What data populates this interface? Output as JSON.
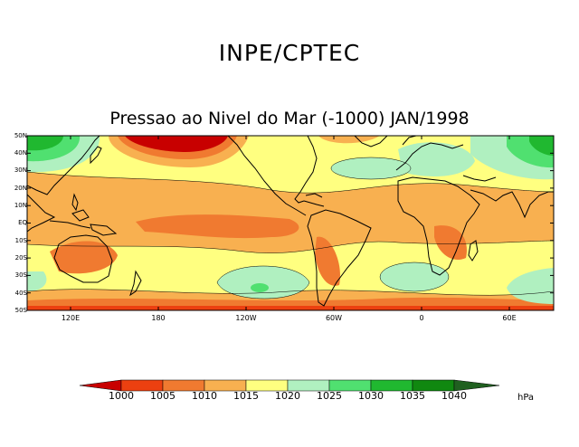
{
  "header": {
    "title": "INPE/CPTEC"
  },
  "map": {
    "title": "Pressao ao Nivel do Mar (-1000) JAN/1998",
    "lat_labels": [
      "50N",
      "40N",
      "30N",
      "20N",
      "10N",
      "EQ",
      "10S",
      "20S",
      "30S",
      "40S",
      "50S"
    ],
    "lon_labels": [
      "120E",
      "180",
      "120W",
      "60W",
      "0",
      "60E"
    ]
  },
  "colorbar": {
    "labels": [
      "1000",
      "1005",
      "1010",
      "1015",
      "1020",
      "1025",
      "1030",
      "1035",
      "1040"
    ],
    "colors": [
      "#c80000",
      "#ec4010",
      "#f07a30",
      "#f8b050",
      "#ffff80",
      "#b0f0c0",
      "#50e070",
      "#20b830",
      "#108810",
      "#206020"
    ],
    "unit": "hPa"
  }
}
